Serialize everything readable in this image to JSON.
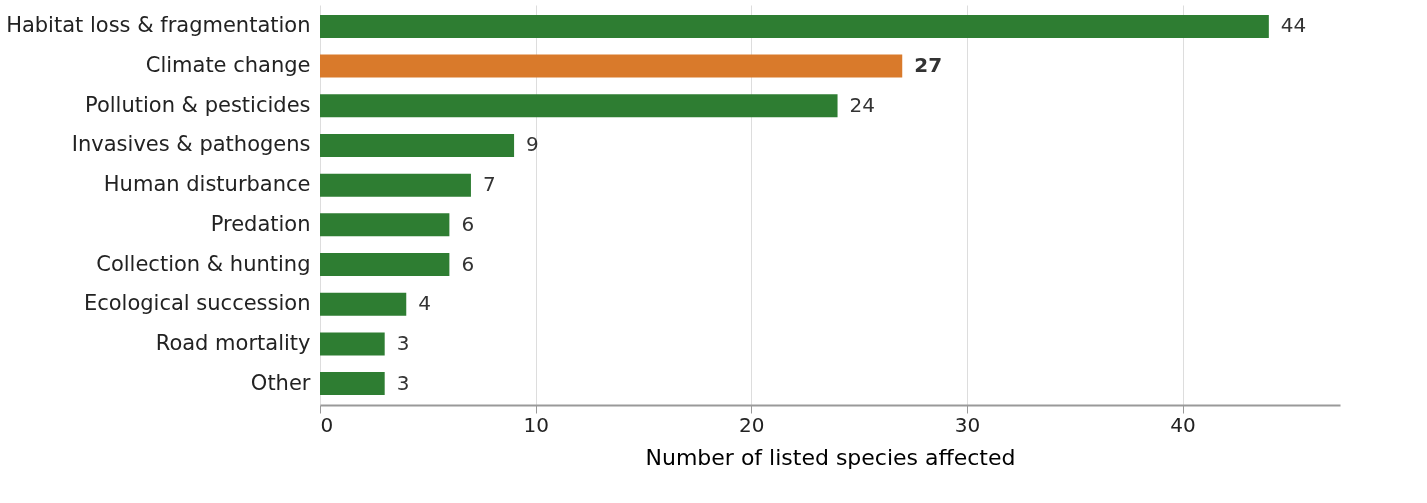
{
  "chart_data": {
    "type": "bar",
    "orientation": "horizontal",
    "xlabel": "Number of listed species affected",
    "categories": [
      "Habitat loss & fragmentation",
      "Climate change",
      "Pollution & pesticides",
      "Invasives & pathogens",
      "Human disturbance",
      "Predation",
      "Collection & hunting",
      "Ecological succession",
      "Road mortality",
      "Other"
    ],
    "values": [
      44,
      27,
      24,
      9,
      7,
      6,
      6,
      4,
      3,
      3
    ],
    "colors": [
      "#2e7d32",
      "#d97a2b",
      "#2e7d32",
      "#2e7d32",
      "#2e7d32",
      "#2e7d32",
      "#2e7d32",
      "#2e7d32",
      "#2e7d32",
      "#2e7d32"
    ],
    "xlim": [
      0,
      47.3
    ],
    "xticks": [
      0,
      10,
      20,
      30,
      40
    ],
    "grid": "x",
    "data_labels": true
  }
}
